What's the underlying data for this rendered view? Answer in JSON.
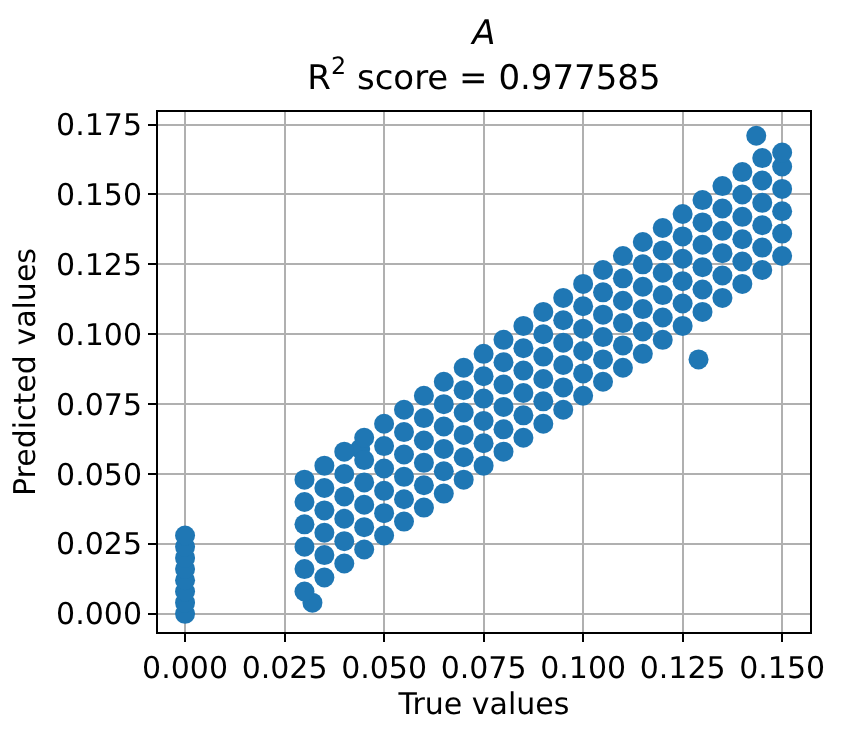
{
  "chart_data": {
    "type": "scatter",
    "title": "A",
    "subtitle": "R$^{2}$ score = 0.977585",
    "xlabel": "True values",
    "ylabel": "Predicted values",
    "xlim": [
      -0.0068,
      0.157
    ],
    "ylim": [
      -0.0065,
      0.1795
    ],
    "xticks": [
      {
        "value": 0,
        "label": "0.000"
      },
      {
        "value": 0.025,
        "label": "0.025"
      },
      {
        "value": 0.05,
        "label": "0.050"
      },
      {
        "value": 0.075,
        "label": "0.075"
      },
      {
        "value": 0.1,
        "label": "0.100"
      },
      {
        "value": 0.125,
        "label": "0.125"
      },
      {
        "value": 0.15,
        "label": "0.150"
      }
    ],
    "yticks": [
      {
        "value": 0,
        "label": "0.000"
      },
      {
        "value": 0.025,
        "label": "0.025"
      },
      {
        "value": 0.05,
        "label": "0.050"
      },
      {
        "value": 0.075,
        "label": "0.075"
      },
      {
        "value": 0.1,
        "label": "0.100"
      },
      {
        "value": 0.125,
        "label": "0.125"
      },
      {
        "value": 0.15,
        "label": "0.150"
      },
      {
        "value": 0.175,
        "label": "0.175"
      }
    ],
    "grid": true,
    "marker": "circle",
    "series": [
      {
        "color": "#1f77b4",
        "x": [
          0,
          0,
          0,
          0,
          0,
          0,
          0,
          0,
          0.032,
          0.044,
          0.129,
          0.1435,
          0.03,
          0.03,
          0.03,
          0.03,
          0.03,
          0.03,
          0.035,
          0.035,
          0.035,
          0.035,
          0.035,
          0.035,
          0.04,
          0.04,
          0.04,
          0.04,
          0.04,
          0.04,
          0.045,
          0.045,
          0.045,
          0.045,
          0.045,
          0.045,
          0.05,
          0.05,
          0.05,
          0.05,
          0.05,
          0.05,
          0.055,
          0.055,
          0.055,
          0.055,
          0.055,
          0.055,
          0.06,
          0.06,
          0.06,
          0.06,
          0.06,
          0.06,
          0.065,
          0.065,
          0.065,
          0.065,
          0.065,
          0.065,
          0.07,
          0.07,
          0.07,
          0.07,
          0.07,
          0.07,
          0.075,
          0.075,
          0.075,
          0.075,
          0.075,
          0.075,
          0.08,
          0.08,
          0.08,
          0.08,
          0.08,
          0.08,
          0.085,
          0.085,
          0.085,
          0.085,
          0.085,
          0.085,
          0.09,
          0.09,
          0.09,
          0.09,
          0.09,
          0.09,
          0.095,
          0.095,
          0.095,
          0.095,
          0.095,
          0.095,
          0.1,
          0.1,
          0.1,
          0.1,
          0.1,
          0.1,
          0.105,
          0.105,
          0.105,
          0.105,
          0.105,
          0.105,
          0.11,
          0.11,
          0.11,
          0.11,
          0.11,
          0.11,
          0.115,
          0.115,
          0.115,
          0.115,
          0.115,
          0.115,
          0.12,
          0.12,
          0.12,
          0.12,
          0.12,
          0.12,
          0.125,
          0.125,
          0.125,
          0.125,
          0.125,
          0.125,
          0.13,
          0.13,
          0.13,
          0.13,
          0.13,
          0.13,
          0.135,
          0.135,
          0.135,
          0.135,
          0.135,
          0.135,
          0.14,
          0.14,
          0.14,
          0.14,
          0.14,
          0.14,
          0.145,
          0.145,
          0.145,
          0.145,
          0.145,
          0.145,
          0.15,
          0.15,
          0.15,
          0.15,
          0.15,
          0.15
        ],
        "values": [
          0,
          0.004,
          0.008,
          0.012,
          0.016,
          0.02,
          0.024,
          0.028,
          0.004,
          0.059,
          0.091,
          0.171,
          0.008,
          0.016,
          0.024,
          0.032,
          0.04,
          0.048,
          0.013,
          0.021,
          0.029,
          0.037,
          0.045,
          0.053,
          0.018,
          0.026,
          0.034,
          0.042,
          0.05,
          0.058,
          0.023,
          0.031,
          0.039,
          0.047,
          0.055,
          0.063,
          0.028,
          0.036,
          0.044,
          0.052,
          0.06,
          0.068,
          0.033,
          0.041,
          0.049,
          0.057,
          0.065,
          0.073,
          0.038,
          0.046,
          0.054,
          0.062,
          0.07,
          0.078,
          0.043,
          0.051,
          0.059,
          0.067,
          0.075,
          0.083,
          0.048,
          0.056,
          0.064,
          0.072,
          0.08,
          0.088,
          0.053,
          0.061,
          0.069,
          0.077,
          0.085,
          0.093,
          0.058,
          0.066,
          0.074,
          0.082,
          0.09,
          0.098,
          0.063,
          0.071,
          0.079,
          0.087,
          0.095,
          0.103,
          0.068,
          0.076,
          0.084,
          0.092,
          0.1,
          0.108,
          0.073,
          0.081,
          0.089,
          0.097,
          0.105,
          0.113,
          0.078,
          0.086,
          0.094,
          0.102,
          0.11,
          0.118,
          0.083,
          0.091,
          0.099,
          0.107,
          0.115,
          0.123,
          0.088,
          0.096,
          0.104,
          0.112,
          0.12,
          0.128,
          0.093,
          0.101,
          0.109,
          0.117,
          0.125,
          0.133,
          0.098,
          0.106,
          0.114,
          0.122,
          0.13,
          0.138,
          0.103,
          0.111,
          0.119,
          0.127,
          0.135,
          0.143,
          0.108,
          0.116,
          0.124,
          0.132,
          0.14,
          0.148,
          0.113,
          0.121,
          0.129,
          0.137,
          0.145,
          0.153,
          0.118,
          0.126,
          0.134,
          0.142,
          0.15,
          0.158,
          0.123,
          0.131,
          0.139,
          0.147,
          0.155,
          0.163,
          0.128,
          0.136,
          0.144,
          0.152,
          0.16,
          0.165
        ]
      }
    ]
  }
}
